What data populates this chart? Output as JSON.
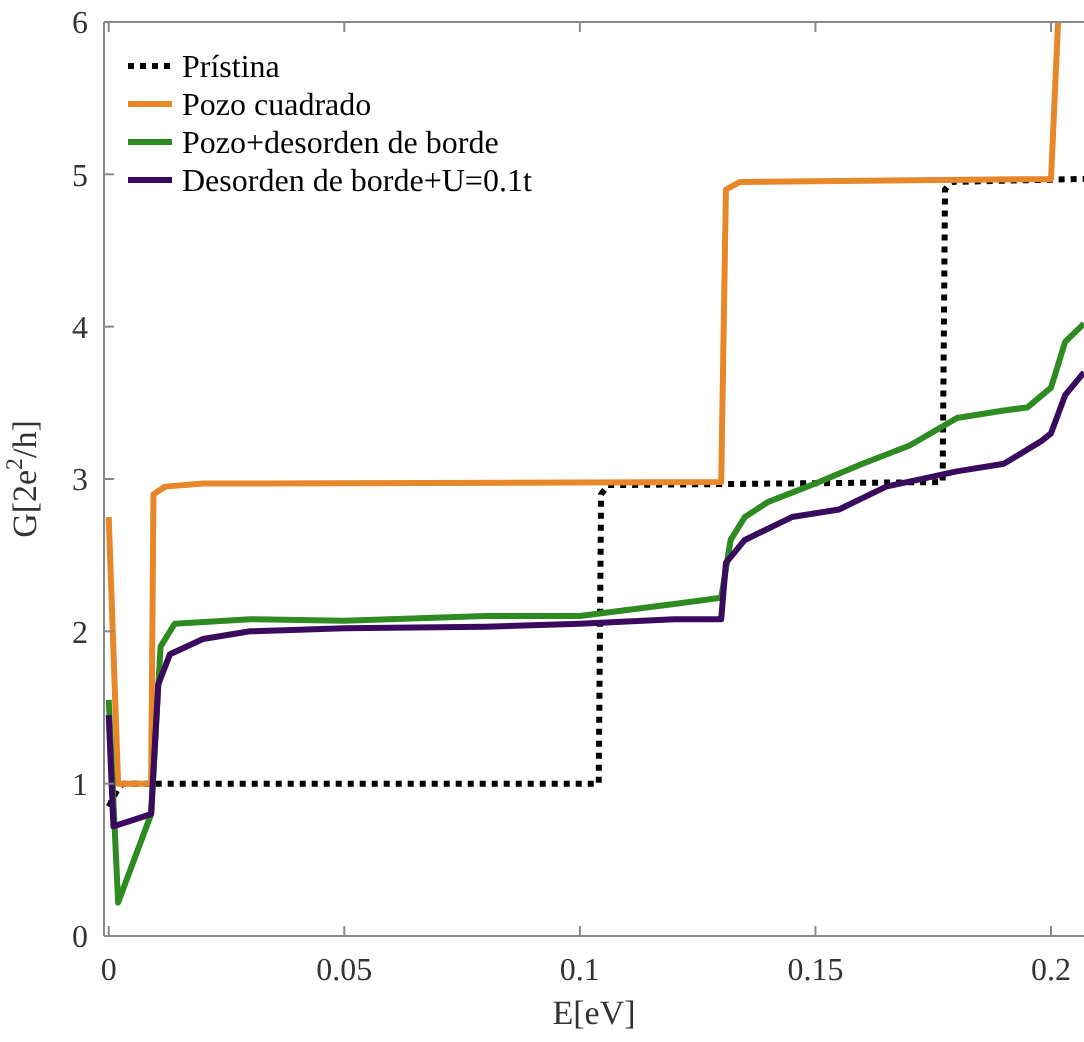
{
  "chart_data": {
    "type": "line",
    "xlabel": "E[eV]",
    "ylabel": "G[2e$^{2}$/h]",
    "xlim": [
      -0.001,
      0.207
    ],
    "ylim": [
      0,
      6
    ],
    "xticks": [
      0,
      0.05,
      0.1,
      0.15,
      0.2
    ],
    "yticks": [
      0,
      1,
      2,
      3,
      4,
      5,
      6
    ],
    "grid": false,
    "legend": "top left",
    "series": [
      {
        "name": "Prístina",
        "color": "#000000",
        "line_style": "dotted",
        "x": [
          0,
          0.002,
          0.003,
          0.104,
          0.1045,
          0.106,
          0.177,
          0.1775,
          0.179,
          0.207
        ],
        "values": [
          0.85,
          0.97,
          1,
          1,
          2.9,
          2.96,
          2.98,
          4.9,
          4.95,
          4.97
        ]
      },
      {
        "name": "Pozo cuadrado",
        "color": "#e8862a",
        "line_style": "solid",
        "x": [
          0,
          0.002,
          0.009,
          0.0095,
          0.012,
          0.02,
          0.13,
          0.131,
          0.134,
          0.2,
          0.2015
        ],
        "values": [
          2.75,
          1,
          1,
          2.9,
          2.95,
          2.97,
          2.98,
          4.9,
          4.95,
          4.97,
          6
        ]
      },
      {
        "name": "Pozo+desorden de borde",
        "color": "#2e8b22",
        "line_style": "solid",
        "x": [
          0,
          0.002,
          0.009,
          0.011,
          0.014,
          0.03,
          0.05,
          0.08,
          0.1,
          0.12,
          0.13,
          0.132,
          0.135,
          0.14,
          0.15,
          0.16,
          0.17,
          0.18,
          0.19,
          0.195,
          0.2,
          0.203,
          0.207
        ],
        "values": [
          1.55,
          0.22,
          0.8,
          1.9,
          2.05,
          2.08,
          2.07,
          2.1,
          2.1,
          2.18,
          2.22,
          2.6,
          2.75,
          2.85,
          2.97,
          3.1,
          3.22,
          3.4,
          3.45,
          3.47,
          3.6,
          3.9,
          4.02
        ]
      },
      {
        "name": "Desorden de borde+U=0.1t",
        "color": "#3a0a5e",
        "line_style": "solid",
        "x": [
          0,
          0.001,
          0.009,
          0.0105,
          0.013,
          0.02,
          0.03,
          0.05,
          0.08,
          0.1,
          0.12,
          0.13,
          0.131,
          0.135,
          0.145,
          0.155,
          0.165,
          0.18,
          0.19,
          0.198,
          0.2,
          0.203,
          0.207
        ],
        "values": [
          1.45,
          0.72,
          0.8,
          1.65,
          1.85,
          1.95,
          2,
          2.02,
          2.03,
          2.05,
          2.08,
          2.08,
          2.45,
          2.6,
          2.75,
          2.8,
          2.95,
          3.05,
          3.1,
          3.25,
          3.3,
          3.55,
          3.7
        ]
      }
    ]
  }
}
